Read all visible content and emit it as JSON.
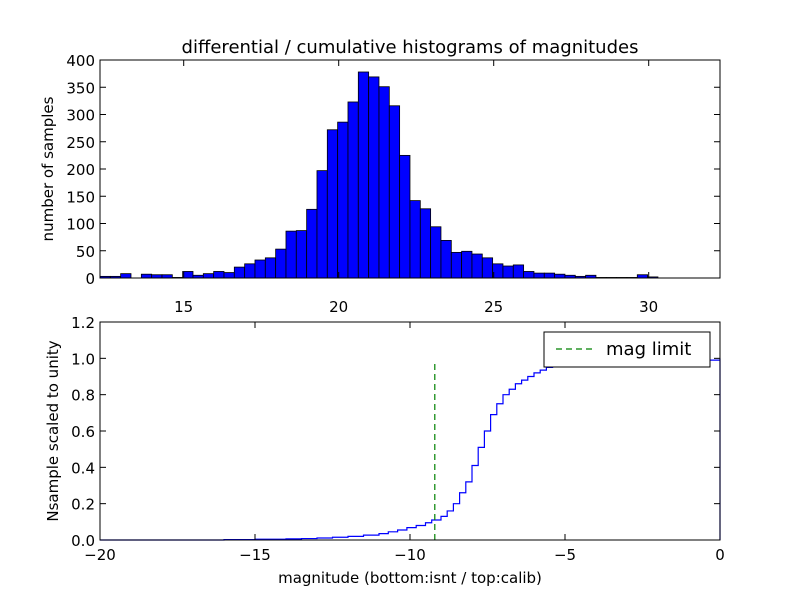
{
  "chart_data": [
    {
      "type": "bar",
      "title": "differential / cumulative histograms of magnitudes",
      "xlabel": "",
      "ylabel": "number of samples",
      "xlim": [
        12.3,
        32.3
      ],
      "ylim": [
        0,
        400
      ],
      "xticks": [
        "15",
        "20",
        "25",
        "30"
      ],
      "xtick_values": [
        15,
        20,
        25,
        30
      ],
      "yticks": [
        "0",
        "50",
        "100",
        "150",
        "200",
        "250",
        "300",
        "350",
        "400"
      ],
      "ytick_values": [
        0,
        50,
        100,
        150,
        200,
        250,
        300,
        350,
        400
      ],
      "bin_start": 12.3,
      "bin_width": 0.3333,
      "values": [
        3,
        3,
        8,
        0,
        7,
        6,
        6,
        1,
        12,
        5,
        8,
        12,
        10,
        20,
        26,
        33,
        37,
        53,
        86,
        87,
        126,
        197,
        272,
        286,
        323,
        378,
        369,
        351,
        316,
        225,
        142,
        127,
        94,
        69,
        47,
        49,
        44,
        37,
        26,
        22,
        24,
        12,
        9,
        9,
        7,
        5,
        3,
        5,
        1,
        1,
        1,
        1,
        6,
        2,
        0,
        0,
        0,
        0,
        0,
        0
      ],
      "bar_color": "#0000ff",
      "grid": false
    },
    {
      "type": "line",
      "xlabel": "magnitude (bottom:isnt / top:calib)",
      "ylabel": "Nsample scaled to unity",
      "xlim": [
        -20,
        0
      ],
      "ylim": [
        0,
        1.2
      ],
      "xticks": [
        "−20",
        "−15",
        "−10",
        "−5",
        "0"
      ],
      "xtick_values": [
        -20,
        -15,
        -10,
        -5,
        0
      ],
      "yticks": [
        "0.0",
        "0.2",
        "0.4",
        "0.6",
        "0.8",
        "1.0",
        "1.2"
      ],
      "ytick_values": [
        0,
        0.2,
        0.4,
        0.6,
        0.8,
        1.0,
        1.2
      ],
      "series": [
        {
          "name": "",
          "style": "steps",
          "color": "#0000ff",
          "x": [
            -20,
            -16,
            -15,
            -14,
            -13.5,
            -13,
            -12.5,
            -12,
            -11.5,
            -11,
            -10.7,
            -10.4,
            -10.1,
            -9.8,
            -9.5,
            -9.3,
            -9.0,
            -8.8,
            -8.6,
            -8.4,
            -8.2,
            -8.0,
            -7.8,
            -7.6,
            -7.4,
            -7.2,
            -7.0,
            -6.8,
            -6.6,
            -6.4,
            -6.2,
            -6.0,
            -5.8,
            -5.6,
            -5.4,
            -5.2,
            -5.0,
            -4.8,
            -4.6,
            0
          ],
          "y": [
            0,
            0.002,
            0.004,
            0.006,
            0.008,
            0.011,
            0.015,
            0.02,
            0.027,
            0.035,
            0.045,
            0.055,
            0.068,
            0.08,
            0.095,
            0.11,
            0.13,
            0.16,
            0.2,
            0.26,
            0.32,
            0.41,
            0.51,
            0.6,
            0.69,
            0.75,
            0.8,
            0.83,
            0.86,
            0.88,
            0.9,
            0.92,
            0.935,
            0.95,
            0.96,
            0.97,
            0.98,
            0.985,
            0.99,
            1.0
          ]
        },
        {
          "name": "mag limit",
          "style": "dashed",
          "color": "#008000",
          "x": [
            -9.2,
            -9.2
          ],
          "y": [
            0,
            0.97
          ]
        }
      ],
      "legend": {
        "placement": "top-right",
        "entries": [
          "mag limit"
        ]
      },
      "grid": false
    }
  ]
}
